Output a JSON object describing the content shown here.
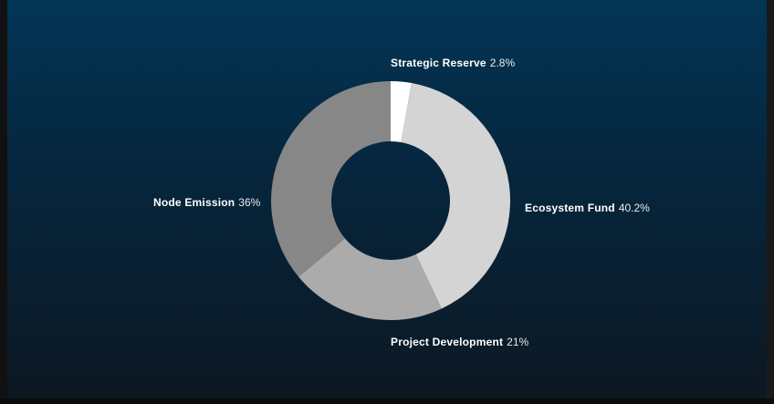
{
  "chart_data": {
    "type": "pie",
    "title": "",
    "donut": true,
    "categories": [
      "Strategic Reserve",
      "Ecosystem Fund",
      "Project Development",
      "Node Emission"
    ],
    "values": [
      2.8,
      40.2,
      21,
      36
    ],
    "labels": [
      "2.8%",
      "40.2%",
      "21%",
      "36%"
    ],
    "colors": [
      "#ffffff",
      "#d4d4d4",
      "#ababab",
      "#878787"
    ],
    "legend": "none"
  }
}
